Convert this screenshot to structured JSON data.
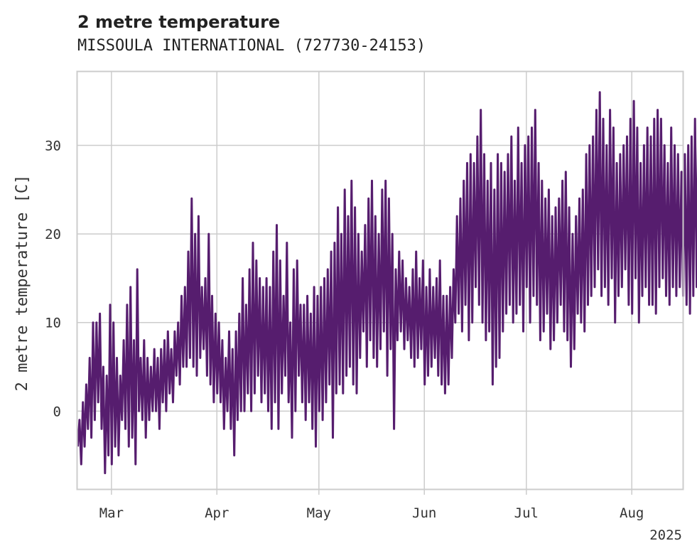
{
  "chart_data": {
    "type": "line",
    "title": "2 metre temperature",
    "subtitle": "MISSOULA INTERNATIONAL (727730-24153)",
    "ylabel": "2 metre temperature [C]",
    "xlabel": "",
    "x_year_label": "2025",
    "x_start": "2025-02-19",
    "x_end": "2025-08-16",
    "xlim": [
      "2025-02-19",
      "2025-08-16"
    ],
    "ylim": [
      -8.8,
      38.3
    ],
    "grid": true,
    "line_color": "#561D6E",
    "x_ticks": [
      {
        "date": "2025-03-01",
        "label": "Mar"
      },
      {
        "date": "2025-04-01",
        "label": "Apr"
      },
      {
        "date": "2025-05-01",
        "label": "May"
      },
      {
        "date": "2025-06-01",
        "label": "Jun"
      },
      {
        "date": "2025-07-01",
        "label": "Jul"
      },
      {
        "date": "2025-08-01",
        "label": "Aug"
      }
    ],
    "y_ticks": [
      0,
      10,
      20,
      30
    ],
    "series": [
      {
        "name": "",
        "sampling": "daily minimum and maximum (approximate)",
        "values": [
          [
            -4,
            -1
          ],
          [
            -6,
            1
          ],
          [
            -4,
            3
          ],
          [
            -2,
            6
          ],
          [
            -3,
            10
          ],
          [
            -1,
            10
          ],
          [
            1,
            11
          ],
          [
            -2,
            5
          ],
          [
            -7,
            4
          ],
          [
            -5,
            12
          ],
          [
            -6,
            10
          ],
          [
            -4,
            6
          ],
          [
            -5,
            4
          ],
          [
            -1,
            8
          ],
          [
            -2,
            12
          ],
          [
            -4,
            14
          ],
          [
            -3,
            8
          ],
          [
            -6,
            16
          ],
          [
            0,
            6
          ],
          [
            -1,
            8
          ],
          [
            -3,
            6
          ],
          [
            -1,
            5
          ],
          [
            0,
            7
          ],
          [
            0,
            6
          ],
          [
            -2,
            7
          ],
          [
            1,
            8
          ],
          [
            0,
            9
          ],
          [
            2,
            7
          ],
          [
            1,
            9
          ],
          [
            4,
            10
          ],
          [
            3,
            13
          ],
          [
            5,
            14
          ],
          [
            5,
            18
          ],
          [
            6,
            24
          ],
          [
            5,
            20
          ],
          [
            4,
            22
          ],
          [
            6,
            14
          ],
          [
            7,
            15
          ],
          [
            4,
            20
          ],
          [
            3,
            13
          ],
          [
            1,
            11
          ],
          [
            2,
            10
          ],
          [
            1,
            8
          ],
          [
            -2,
            6
          ],
          [
            0,
            9
          ],
          [
            -2,
            7
          ],
          [
            -5,
            9
          ],
          [
            -1,
            11
          ],
          [
            0,
            15
          ],
          [
            0,
            12
          ],
          [
            2,
            16
          ],
          [
            0,
            19
          ],
          [
            2,
            17
          ],
          [
            4,
            15
          ],
          [
            1,
            14
          ],
          [
            2,
            15
          ],
          [
            0,
            14
          ],
          [
            -2,
            18
          ],
          [
            1,
            21
          ],
          [
            -2,
            17
          ],
          [
            2,
            13
          ],
          [
            4,
            19
          ],
          [
            1,
            10
          ],
          [
            -3,
            16
          ],
          [
            0,
            17
          ],
          [
            4,
            12
          ],
          [
            1,
            12
          ],
          [
            -1,
            13
          ],
          [
            1,
            11
          ],
          [
            -2,
            14
          ],
          [
            -4,
            13
          ],
          [
            0,
            14
          ],
          [
            -1,
            15
          ],
          [
            1,
            16
          ],
          [
            3,
            18
          ],
          [
            -3,
            19
          ],
          [
            2,
            23
          ],
          [
            3,
            20
          ],
          [
            2,
            25
          ],
          [
            4,
            22
          ],
          [
            5,
            26
          ],
          [
            3,
            23
          ],
          [
            2,
            20
          ],
          [
            6,
            18
          ],
          [
            9,
            21
          ],
          [
            5,
            24
          ],
          [
            8,
            26
          ],
          [
            6,
            22
          ],
          [
            5,
            20
          ],
          [
            7,
            25
          ],
          [
            9,
            26
          ],
          [
            4,
            24
          ],
          [
            7,
            20
          ],
          [
            -2,
            16
          ],
          [
            8,
            18
          ],
          [
            9,
            17
          ],
          [
            7,
            15
          ],
          [
            8,
            14
          ],
          [
            6,
            16
          ],
          [
            5,
            18
          ],
          [
            6,
            15
          ],
          [
            7,
            17
          ],
          [
            3,
            14
          ],
          [
            4,
            16
          ],
          [
            5,
            14
          ],
          [
            6,
            15
          ],
          [
            4,
            17
          ],
          [
            3,
            13
          ],
          [
            2,
            13
          ],
          [
            3,
            14
          ],
          [
            6,
            16
          ],
          [
            10,
            22
          ],
          [
            11,
            24
          ],
          [
            9,
            26
          ],
          [
            12,
            28
          ],
          [
            8,
            29
          ],
          [
            10,
            28
          ],
          [
            14,
            31
          ],
          [
            12,
            34
          ],
          [
            10,
            29
          ],
          [
            8,
            26
          ],
          [
            9,
            28
          ],
          [
            3,
            25
          ],
          [
            5,
            29
          ],
          [
            6,
            28
          ],
          [
            9,
            27
          ],
          [
            11,
            29
          ],
          [
            12,
            31
          ],
          [
            10,
            26
          ],
          [
            11,
            32
          ],
          [
            12,
            28
          ],
          [
            9,
            30
          ],
          [
            14,
            31
          ],
          [
            10,
            32
          ],
          [
            13,
            34
          ],
          [
            12,
            28
          ],
          [
            8,
            26
          ],
          [
            9,
            24
          ],
          [
            11,
            25
          ],
          [
            7,
            22
          ],
          [
            8,
            23
          ],
          [
            10,
            24
          ],
          [
            12,
            26
          ],
          [
            9,
            27
          ],
          [
            8,
            23
          ],
          [
            5,
            20
          ],
          [
            7,
            22
          ],
          [
            11,
            24
          ],
          [
            10,
            25
          ],
          [
            9,
            29
          ],
          [
            12,
            30
          ],
          [
            13,
            31
          ],
          [
            14,
            34
          ],
          [
            16,
            36
          ],
          [
            13,
            33
          ],
          [
            14,
            30
          ],
          [
            12,
            34
          ],
          [
            15,
            32
          ],
          [
            10,
            28
          ],
          [
            13,
            29
          ],
          [
            14,
            30
          ],
          [
            16,
            31
          ],
          [
            12,
            33
          ],
          [
            11,
            35
          ],
          [
            15,
            32
          ],
          [
            10,
            28
          ],
          [
            13,
            30
          ],
          [
            14,
            32
          ],
          [
            12,
            31
          ],
          [
            12,
            33
          ],
          [
            11,
            34
          ],
          [
            14,
            33
          ],
          [
            15,
            30
          ],
          [
            13,
            28
          ],
          [
            12,
            32
          ],
          [
            14,
            30
          ],
          [
            13,
            29
          ],
          [
            14,
            27
          ],
          [
            13,
            29
          ],
          [
            12,
            30
          ],
          [
            11,
            31
          ],
          [
            13,
            33
          ],
          [
            14,
            34
          ],
          [
            15,
            32
          ],
          [
            14,
            31
          ],
          [
            12,
            33
          ]
        ]
      }
    ]
  }
}
